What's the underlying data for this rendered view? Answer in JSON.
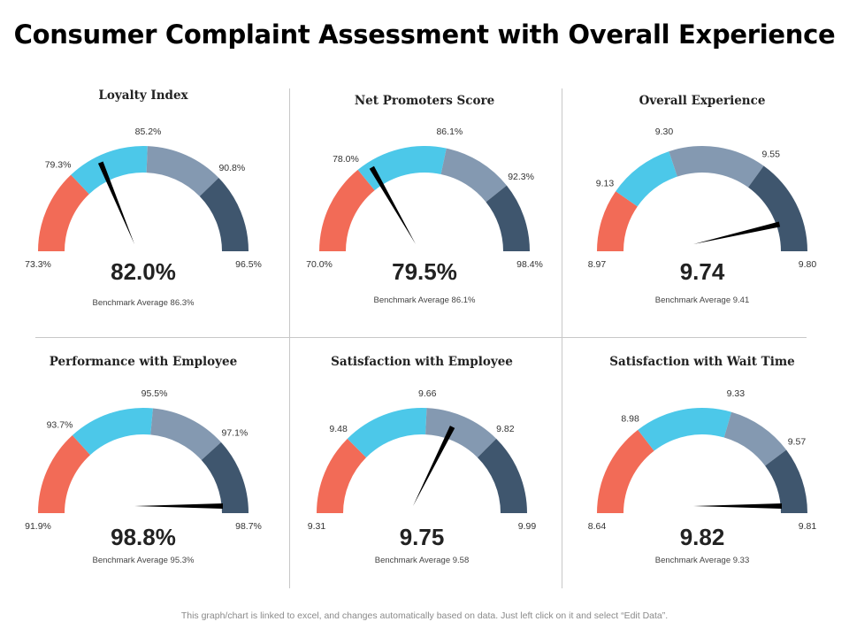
{
  "title": "Consumer Complaint Assessment with Overall Experience",
  "footer_note": "This graph/chart is linked to excel, and changes automatically based on data. Just left click on it and select “Edit Data”.",
  "colors": {
    "segment_1": "#f26b57",
    "segment_2": "#4cc8e9",
    "segment_3": "#8499b1",
    "segment_4": "#3f566e",
    "needle": "#000000",
    "divider": "#c8c8c8"
  },
  "chart_data": [
    {
      "type": "gauge",
      "title": "Loyalty Index",
      "value": 82.0,
      "value_label": "82.0%",
      "benchmark_label": "Benchmark Average 86.3%",
      "scale_labels": [
        "73.3%",
        "79.3%",
        "85.2%",
        "90.8%",
        "96.5%"
      ]
    },
    {
      "type": "gauge",
      "title": "Net Promoters Score",
      "value": 79.5,
      "value_label": "79.5%",
      "benchmark_label": "Benchmark Average 86.1%",
      "scale_labels": [
        "70.0%",
        "78.0%",
        "86.1%",
        "92.3%",
        "98.4%"
      ]
    },
    {
      "type": "gauge",
      "title": "Overall Experience",
      "value": 9.74,
      "value_label": "9.74",
      "benchmark_label": "Benchmark Average 9.41",
      "scale_labels": [
        "8.97",
        "9.13",
        "9.30",
        "9.55",
        "9.80"
      ]
    },
    {
      "type": "gauge",
      "title": "Performance with Employee",
      "value": 98.8,
      "value_label": "98.8%",
      "benchmark_label": "Benchmark Average 95.3%",
      "scale_labels": [
        "91.9%",
        "93.7%",
        "95.5%",
        "97.1%",
        "98.7%"
      ]
    },
    {
      "type": "gauge",
      "title": "Satisfaction with Employee",
      "value": 9.75,
      "value_label": "9.75",
      "benchmark_label": "Benchmark Average 9.58",
      "scale_labels": [
        "9.31",
        "9.48",
        "9.66",
        "9.82",
        "9.99"
      ]
    },
    {
      "type": "gauge",
      "title": "Satisfaction with Wait Time",
      "value": 9.82,
      "value_label": "9.82",
      "benchmark_label": "Benchmark Average 9.33",
      "scale_labels": [
        "8.64",
        "8.98",
        "9.33",
        "9.57",
        "9.81"
      ]
    }
  ]
}
